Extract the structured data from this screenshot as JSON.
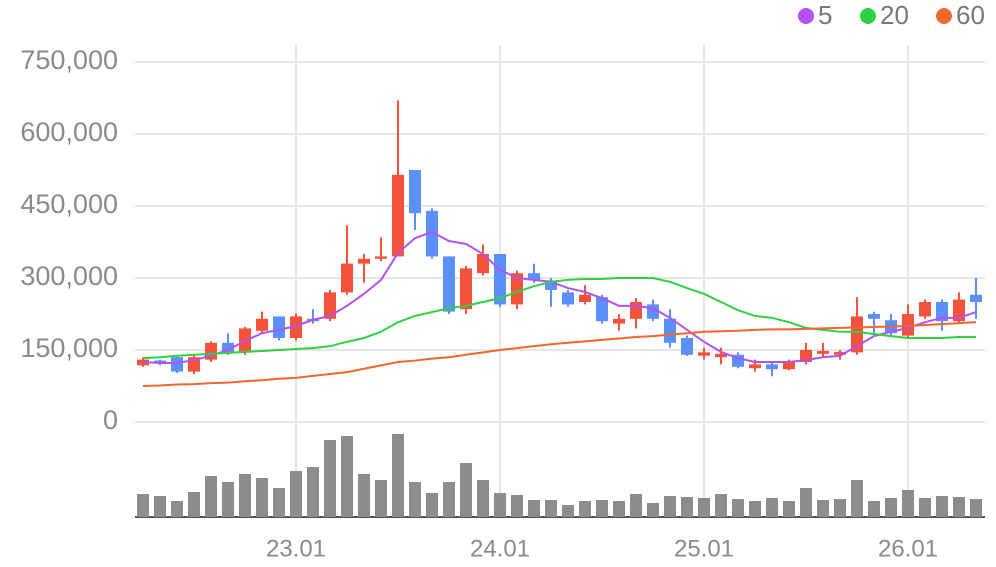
{
  "chart_data": {
    "type": "candlestick",
    "categories": [
      null,
      null,
      null,
      null,
      null,
      null,
      null,
      null,
      null,
      "23.01",
      null,
      null,
      null,
      null,
      null,
      null,
      null,
      null,
      null,
      null,
      null,
      "24.01",
      null,
      null,
      null,
      null,
      null,
      null,
      null,
      null,
      null,
      null,
      null,
      "25.01",
      null,
      null,
      null,
      null,
      null,
      null,
      null,
      null,
      null,
      null,
      null,
      "26.01",
      null,
      null,
      null,
      null
    ],
    "open": [
      118000,
      128000,
      135000,
      105000,
      130000,
      165000,
      145000,
      190000,
      220000,
      175000,
      215000,
      215000,
      270000,
      330000,
      340000,
      345000,
      525000,
      440000,
      345000,
      235000,
      310000,
      350000,
      245000,
      310000,
      295000,
      270000,
      250000,
      260000,
      205000,
      215000,
      245000,
      215000,
      175000,
      138000,
      135000,
      140000,
      112000,
      120000,
      110000,
      125000,
      142000,
      140000,
      145000,
      225000,
      212000,
      180000,
      220000,
      250000,
      210000,
      265000
    ],
    "high": [
      135000,
      130000,
      140000,
      140000,
      168000,
      185000,
      198000,
      230000,
      220000,
      225000,
      235000,
      275000,
      410000,
      350000,
      385000,
      670000,
      525000,
      445000,
      345000,
      325000,
      370000,
      350000,
      315000,
      330000,
      300000,
      275000,
      285000,
      265000,
      225000,
      258000,
      255000,
      235000,
      180000,
      155000,
      155000,
      145000,
      130000,
      125000,
      130000,
      165000,
      165000,
      150000,
      260000,
      230000,
      225000,
      245000,
      255000,
      255000,
      270000,
      300000
    ],
    "low": [
      115000,
      118000,
      102000,
      100000,
      125000,
      140000,
      140000,
      185000,
      170000,
      170000,
      205000,
      210000,
      265000,
      290000,
      335000,
      345000,
      400000,
      340000,
      225000,
      225000,
      305000,
      240000,
      235000,
      290000,
      240000,
      240000,
      245000,
      205000,
      190000,
      195000,
      210000,
      155000,
      138000,
      130000,
      120000,
      112000,
      105000,
      95000,
      108000,
      120000,
      135000,
      130000,
      140000,
      185000,
      180000,
      175000,
      215000,
      190000,
      205000,
      215000
    ],
    "close": [
      130000,
      122000,
      105000,
      135000,
      165000,
      145000,
      195000,
      215000,
      175000,
      220000,
      210000,
      270000,
      330000,
      340000,
      345000,
      515000,
      435000,
      345000,
      230000,
      320000,
      350000,
      245000,
      310000,
      295000,
      275000,
      245000,
      265000,
      210000,
      215000,
      250000,
      215000,
      165000,
      140000,
      145000,
      142000,
      115000,
      120000,
      110000,
      125000,
      150000,
      148000,
      146000,
      220000,
      215000,
      185000,
      225000,
      250000,
      210000,
      255000,
      250000
    ],
    "up_color": "#f4523b",
    "down_color": "#5b8ff9",
    "series": [
      {
        "name": "5",
        "color": "#b452f0",
        "values": [
          125000,
          123000,
          123000,
          129000,
          138000,
          150000,
          169000,
          185000,
          192000,
          200000,
          213000,
          221000,
          242000,
          267000,
          296000,
          352000,
          383000,
          396000,
          377000,
          371000,
          350000,
          317000,
          300000,
          296000,
          292000,
          279000,
          271000,
          258000,
          242000,
          242000,
          237000,
          217000,
          192000,
          167000,
          146000,
          133000,
          125000,
          125000,
          125000,
          129000,
          135000,
          138000,
          158000,
          179000,
          188000,
          196000,
          208000,
          217000,
          217000,
          229000
        ]
      },
      {
        "name": "20",
        "color": "#2fd144",
        "values": [
          133000,
          135000,
          138000,
          140000,
          142000,
          144000,
          146000,
          148000,
          150000,
          152000,
          154000,
          158000,
          167000,
          175000,
          188000,
          208000,
          221000,
          229000,
          237000,
          242000,
          250000,
          258000,
          271000,
          283000,
          292000,
          296000,
          298000,
          298000,
          300000,
          300000,
          300000,
          292000,
          279000,
          267000,
          250000,
          233000,
          221000,
          217000,
          208000,
          196000,
          192000,
          188000,
          188000,
          183000,
          179000,
          175000,
          175000,
          175000,
          177000,
          177000
        ]
      },
      {
        "name": "60",
        "color": "#f5652e",
        "values": [
          75000,
          76000,
          78000,
          79000,
          81000,
          82000,
          85000,
          87000,
          90000,
          92000,
          96000,
          100000,
          104000,
          111000,
          118000,
          125000,
          128000,
          132000,
          135000,
          140000,
          145000,
          150000,
          154000,
          158000,
          162000,
          165000,
          168000,
          171000,
          174000,
          177000,
          179000,
          182000,
          185000,
          188000,
          189000,
          190000,
          192000,
          193000,
          193000,
          194000,
          195000,
          196000,
          197000,
          198000,
          199000,
          200000,
          202000,
          204000,
          206000,
          208000
        ]
      }
    ],
    "volume": [
      23,
      21,
      16,
      25,
      41,
      35,
      43,
      39,
      29,
      46,
      50,
      77,
      81,
      43,
      37,
      83,
      35,
      24,
      35,
      54,
      37,
      24,
      22,
      17,
      17,
      12,
      16,
      17,
      16,
      23,
      14,
      21,
      20,
      19,
      23,
      18,
      16,
      19,
      16,
      29,
      17,
      18,
      37,
      16,
      19,
      27,
      19,
      21,
      20,
      18
    ],
    "volume_color": "#8c8c8c",
    "volume_lim": [
      0,
      100
    ],
    "ylim": [
      0,
      750000
    ],
    "yticks": [
      0,
      {
        "value": 150000,
        "label": "150,000"
      },
      {
        "value": 300000,
        "label": "300,000"
      },
      {
        "value": 450000,
        "label": "450,000"
      },
      {
        "value": 600000,
        "label": "600,000"
      },
      {
        "value": 750000,
        "label": "750,000"
      }
    ],
    "grid": true,
    "legend": "top-right"
  }
}
